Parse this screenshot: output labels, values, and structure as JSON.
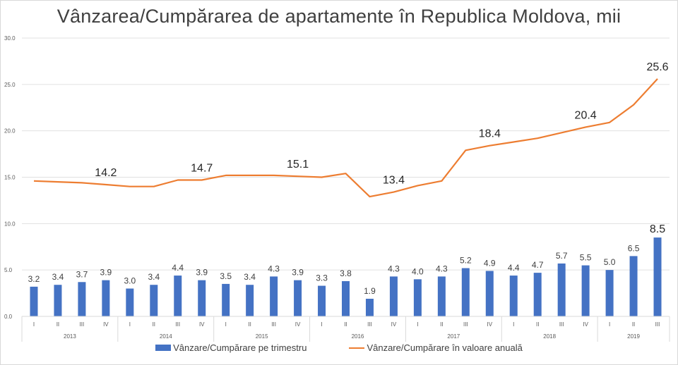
{
  "chart_data": {
    "type": "bar",
    "title": "Vânzarea/Cumpărarea de apartamente în Republica Moldova, mii",
    "xlabel": "",
    "ylabel": "",
    "ylim": [
      0,
      30
    ],
    "yticks": [
      "0.0",
      "5.0",
      "10.0",
      "15.0",
      "20.0",
      "25.0",
      "30.0"
    ],
    "grid": true,
    "legend_position": "bottom",
    "categories": [
      "I",
      "II",
      "III",
      "IV",
      "I",
      "II",
      "III",
      "IV",
      "I",
      "II",
      "III",
      "IV",
      "I",
      "II",
      "III",
      "IV",
      "I",
      "II",
      "III",
      "IV",
      "I",
      "II",
      "III",
      "IV",
      "I",
      "II",
      "III"
    ],
    "groups": [
      {
        "label": "2013",
        "count": 4
      },
      {
        "label": "2014",
        "count": 4
      },
      {
        "label": "2015",
        "count": 4
      },
      {
        "label": "2016",
        "count": 4
      },
      {
        "label": "2017",
        "count": 4
      },
      {
        "label": "2018",
        "count": 4
      },
      {
        "label": "2019",
        "count": 3
      }
    ],
    "series": [
      {
        "name": "Vânzare/Cumpărare pe trimestru",
        "type": "bar",
        "color": "#4472c4",
        "values": [
          3.2,
          3.4,
          3.7,
          3.9,
          3.0,
          3.4,
          4.4,
          3.9,
          3.5,
          3.4,
          4.3,
          3.9,
          3.3,
          3.8,
          1.9,
          4.3,
          4.0,
          4.3,
          5.2,
          4.9,
          4.4,
          4.7,
          5.7,
          5.5,
          5.0,
          6.5,
          8.5
        ],
        "labels": [
          "3.2",
          "3.4",
          "3.7",
          "3.9",
          "3.0",
          "3.4",
          "4.4",
          "3.9",
          "3.5",
          "3.4",
          "4.3",
          "3.9",
          "3.3",
          "3.8",
          "1.9",
          "4.3",
          "4.0",
          "4.3",
          "5.2",
          "4.9",
          "4.4",
          "4.7",
          "5.7",
          "5.5",
          "5.0",
          "6.5",
          "8.5"
        ]
      },
      {
        "name": "Vânzare/Cumpărare în valoare anuală",
        "type": "line",
        "color": "#ed7d31",
        "values": [
          14.6,
          14.5,
          14.4,
          14.2,
          14.0,
          14.0,
          14.7,
          14.7,
          15.2,
          15.2,
          15.2,
          15.1,
          15.0,
          15.4,
          12.9,
          13.4,
          14.1,
          14.6,
          17.9,
          18.4,
          18.8,
          19.2,
          19.8,
          20.4,
          20.9,
          22.8,
          25.6
        ],
        "annotations": [
          {
            "index": 3,
            "label": "14.2"
          },
          {
            "index": 7,
            "label": "14.7"
          },
          {
            "index": 11,
            "label": "15.1"
          },
          {
            "index": 15,
            "label": "13.4"
          },
          {
            "index": 19,
            "label": "18.4"
          },
          {
            "index": 23,
            "label": "20.4"
          },
          {
            "index": 26,
            "label": "25.6"
          }
        ]
      }
    ]
  },
  "legend": {
    "bar_label": "Vânzare/Cumpărare pe trimestru",
    "line_label": "Vânzare/Cumpărare în valoare anuală"
  }
}
